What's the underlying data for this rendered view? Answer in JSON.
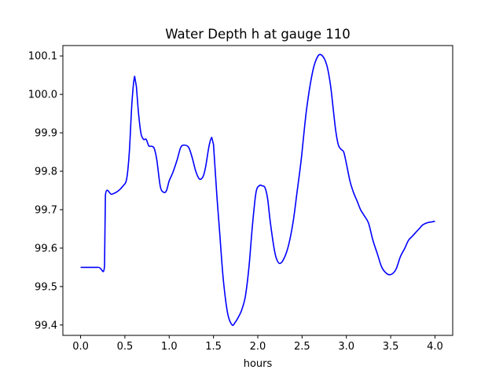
{
  "chart_data": {
    "type": "line",
    "title": "Water Depth h at gauge 110",
    "xlabel": "hours",
    "ylabel": "",
    "xlim": [
      -0.2,
      4.2
    ],
    "ylim": [
      99.373,
      100.127
    ],
    "xticks": [
      0.0,
      0.5,
      1.0,
      1.5,
      2.0,
      2.5,
      3.0,
      3.5,
      4.0
    ],
    "xtick_labels": [
      "0.0",
      "0.5",
      "1.0",
      "1.5",
      "2.0",
      "2.5",
      "3.0",
      "3.5",
      "4.0"
    ],
    "yticks": [
      99.4,
      99.5,
      99.6,
      99.7,
      99.8,
      99.9,
      100.0,
      100.1
    ],
    "ytick_labels": [
      "99.4",
      "99.5",
      "99.6",
      "99.7",
      "99.8",
      "99.9",
      "100.0",
      "100.1"
    ],
    "grid": false,
    "legend": "none",
    "series": [
      {
        "color": "#0000ff",
        "x": [
          0.0,
          0.2,
          0.27,
          0.28,
          0.35,
          0.42,
          0.48,
          0.52,
          0.55,
          0.58,
          0.61,
          0.63,
          0.65,
          0.68,
          0.71,
          0.74,
          0.77,
          0.8,
          0.83,
          0.86,
          0.9,
          0.94,
          0.97,
          1.0,
          1.04,
          1.09,
          1.13,
          1.17,
          1.22,
          1.26,
          1.3,
          1.34,
          1.38,
          1.41,
          1.45,
          1.48,
          1.5,
          1.52,
          1.54,
          1.57,
          1.61,
          1.66,
          1.71,
          1.745,
          1.78,
          1.82,
          1.86,
          1.9,
          1.94,
          1.98,
          2.02,
          2.05,
          2.08,
          2.11,
          2.14,
          2.18,
          2.21,
          2.25,
          2.3,
          2.35,
          2.4,
          2.44,
          2.49,
          2.55,
          2.62,
          2.68,
          2.73,
          2.78,
          2.82,
          2.85,
          2.88,
          2.91,
          2.94,
          2.97,
          3.0,
          3.04,
          3.08,
          3.12,
          3.16,
          3.2,
          3.25,
          3.3,
          3.35,
          3.4,
          3.46,
          3.51,
          3.56,
          3.61,
          3.66,
          3.7,
          3.74,
          3.78,
          3.82,
          3.86,
          3.9,
          3.93,
          3.96,
          4.0
        ],
        "y": [
          99.55,
          99.55,
          99.553,
          99.737,
          99.74,
          99.748,
          99.762,
          99.78,
          99.85,
          99.98,
          100.047,
          100.02,
          99.96,
          99.9,
          99.883,
          99.883,
          99.866,
          99.865,
          99.86,
          99.83,
          99.76,
          99.745,
          99.75,
          99.775,
          99.796,
          99.83,
          99.862,
          99.868,
          99.862,
          99.835,
          99.8,
          99.78,
          99.785,
          99.81,
          99.866,
          99.888,
          99.87,
          99.8,
          99.73,
          99.64,
          99.52,
          99.43,
          99.4,
          99.407,
          99.42,
          99.44,
          99.475,
          99.55,
          99.66,
          99.745,
          99.763,
          99.762,
          99.758,
          99.73,
          99.67,
          99.605,
          99.573,
          99.56,
          99.575,
          99.61,
          99.67,
          99.74,
          99.83,
          99.96,
          100.06,
          100.1,
          100.1,
          100.075,
          100.025,
          99.965,
          99.905,
          99.868,
          99.857,
          99.85,
          99.82,
          99.775,
          99.745,
          99.723,
          99.7,
          99.685,
          99.665,
          99.62,
          99.585,
          99.55,
          99.533,
          99.532,
          99.545,
          99.578,
          99.6,
          99.62,
          99.63,
          99.64,
          99.65,
          99.66,
          99.665,
          99.667,
          99.668,
          99.67
        ]
      }
    ]
  }
}
